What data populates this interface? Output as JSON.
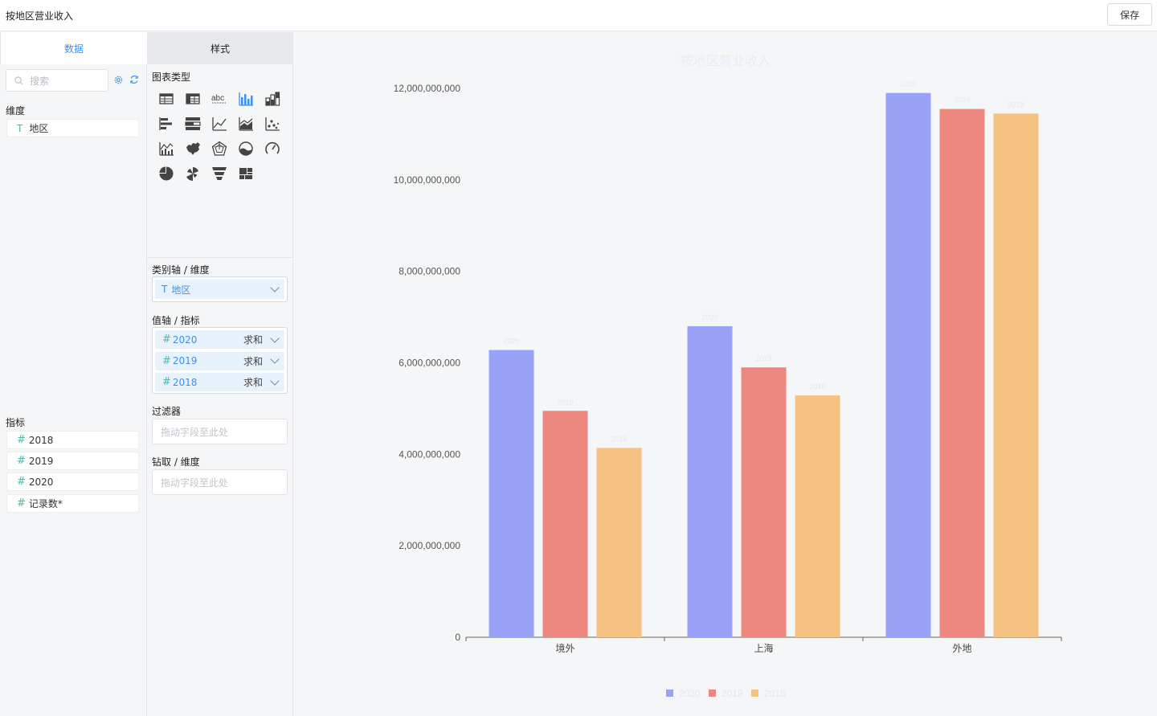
{
  "header": {
    "title": "按地区营业收入",
    "save_label": "保存"
  },
  "data_panel": {
    "tab_label": "数据",
    "search": {
      "placeholder": "搜索"
    },
    "dimension_section": {
      "label": "维度",
      "items": [
        {
          "type_mark": "T",
          "label": "地区"
        }
      ]
    },
    "metric_section": {
      "label": "指标",
      "items": [
        {
          "type_mark": "#",
          "label": "2018"
        },
        {
          "type_mark": "#",
          "label": "2019"
        },
        {
          "type_mark": "#",
          "label": "2020"
        },
        {
          "type_mark": "#",
          "label": "记录数*"
        }
      ]
    }
  },
  "style_panel": {
    "tab_label": "样式",
    "chart_type_label": "图表类型",
    "chart_type_icons": [
      "table-icon",
      "pivot-table-icon",
      "text-abc-icon",
      "bar-chart-icon",
      "stacked-bar-icon",
      "horizontal-bar-icon",
      "stacked-horizontal-bar-icon",
      "line-chart-icon",
      "area-chart-icon",
      "scatter-chart-icon",
      "combo-chart-icon",
      "map-chart-icon",
      "radar-chart-icon",
      "liquid-chart-icon",
      "gauge-chart-icon",
      "pie-chart-icon",
      "rose-chart-icon",
      "funnel-chart-icon",
      "treemap-chart-icon"
    ],
    "active_chart_type": "bar-chart-icon",
    "category_axis": {
      "label": "类别轴 / 维度",
      "value_mark": "T",
      "value": "地区"
    },
    "value_axis": {
      "label": "值轴 / 指标",
      "items": [
        {
          "type_mark": "#",
          "name": "2020",
          "agg": "求和"
        },
        {
          "type_mark": "#",
          "name": "2019",
          "agg": "求和"
        },
        {
          "type_mark": "#",
          "name": "2018",
          "agg": "求和"
        }
      ]
    },
    "filter": {
      "label": "过滤器",
      "placeholder": "拖动字段至此处"
    },
    "drill": {
      "label": "钻取 / 维度",
      "placeholder": "拖动字段至此处"
    }
  },
  "colors": {
    "accent": "#3b8ff5",
    "series_2020": "#98a3f7",
    "series_2019": "#ec8880",
    "series_2018": "#f6c282"
  },
  "chart_data": {
    "type": "bar",
    "title": "按地区营业收入",
    "categories": [
      "境外",
      "上海",
      "外地"
    ],
    "series": [
      {
        "name": "2020",
        "values": [
          6280000000,
          6800000000,
          11900000000
        ],
        "color": "#98a3f7"
      },
      {
        "name": "2019",
        "values": [
          4950000000,
          5900000000,
          11550000000
        ],
        "color": "#ec8880"
      },
      {
        "name": "2018",
        "values": [
          4140000000,
          5290000000,
          11450000000
        ],
        "color": "#f6c282"
      }
    ],
    "yticks": [
      "0",
      "2,000,000,000",
      "4,000,000,000",
      "6,000,000,000",
      "8,000,000,000",
      "10,000,000,000",
      "12,000,000,000"
    ],
    "ylim": [
      0,
      12000000000
    ],
    "legend_position": "bottom",
    "grid": false
  }
}
